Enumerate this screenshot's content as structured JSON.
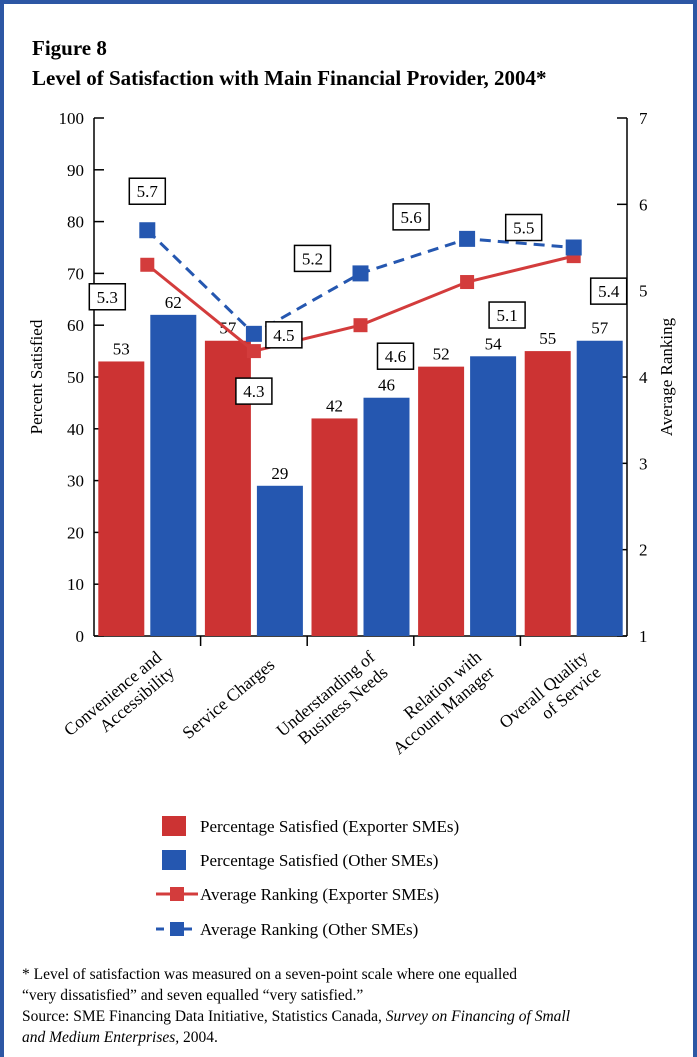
{
  "figure": {
    "label": "Figure 8",
    "title": "Level of Satisfaction with Main Financial Provider, 2004*"
  },
  "chart_data": {
    "type": "bar",
    "categories": [
      [
        "Convenience and",
        "Accessibility"
      ],
      [
        "Service Charges"
      ],
      [
        "Understanding of",
        "Business Needs"
      ],
      [
        "Relation with",
        "Account Manager"
      ],
      [
        "Overall Quality",
        "of Service"
      ]
    ],
    "series": [
      {
        "name": "Percentage Satisfied (Exporter SMEs)",
        "kind": "bar",
        "axis": "left",
        "color": "#cc3333",
        "values": [
          53,
          57,
          42,
          52,
          55
        ]
      },
      {
        "name": "Percentage Satisfied (Other SMEs)",
        "kind": "bar",
        "axis": "left",
        "color": "#2557b0",
        "values": [
          62,
          29,
          46,
          54,
          57
        ]
      },
      {
        "name": "Average Ranking (Exporter SMEs)",
        "kind": "line",
        "axis": "right",
        "style": "solid",
        "color": "#d33c3c",
        "values": [
          5.3,
          4.3,
          4.6,
          5.1,
          5.4
        ]
      },
      {
        "name": "Average Ranking (Other SMEs)",
        "kind": "line",
        "axis": "right",
        "style": "dashed",
        "color": "#2557b0",
        "values": [
          5.7,
          4.5,
          5.2,
          5.6,
          5.5
        ]
      }
    ],
    "ylabel": "Percent Satisfied",
    "ylim": [
      0,
      100
    ],
    "yticks": [
      0,
      10,
      20,
      30,
      40,
      50,
      60,
      70,
      80,
      90,
      100
    ],
    "y2label": "Average Ranking",
    "y2lim": [
      1,
      7
    ],
    "y2ticks": [
      1,
      2,
      3,
      4,
      5,
      6,
      7
    ],
    "grid": false,
    "legend_position": "bottom"
  },
  "footnote": {
    "line1": "* Level of satisfaction was measured on a seven-point scale where one equalled",
    "line2": "“very dissatisfied” and seven equalled “very satisfied.”",
    "source_prefix": "Source: SME Financing Data Initiative, Statistics Canada, ",
    "source_title": "Survey on Financing of Small",
    "source_title_cont": "and Medium Enterprises,",
    "source_suffix": " 2004."
  }
}
